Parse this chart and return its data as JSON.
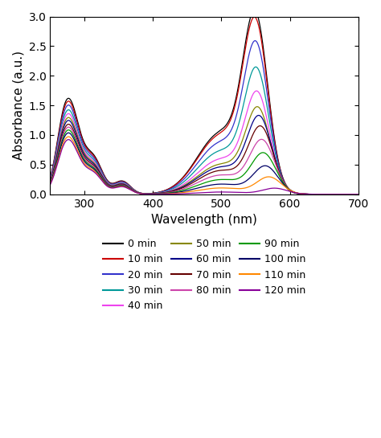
{
  "xlabel": "Wavelength (nm)",
  "ylabel": "Absorbance (a.u.)",
  "xlim": [
    250,
    700
  ],
  "ylim": [
    0.0,
    3.0
  ],
  "xticks": [
    300,
    400,
    500,
    600,
    700
  ],
  "yticks": [
    0.0,
    0.5,
    1.0,
    1.5,
    2.0,
    2.5,
    3.0
  ],
  "series": [
    {
      "label": "0 min",
      "color": "#000000",
      "peak2": 2.72,
      "peak_wl": 550,
      "uv_factor": 1.0
    },
    {
      "label": "10 min",
      "color": "#cc0000",
      "peak2": 2.62,
      "peak_wl": 550,
      "uv_factor": 0.97
    },
    {
      "label": "20 min",
      "color": "#3333cc",
      "peak2": 2.28,
      "peak_wl": 551,
      "uv_factor": 0.93
    },
    {
      "label": "30 min",
      "color": "#009999",
      "peak2": 1.9,
      "peak_wl": 552,
      "uv_factor": 0.88
    },
    {
      "label": "40 min",
      "color": "#ee44ee",
      "peak2": 1.55,
      "peak_wl": 553,
      "uv_factor": 0.84
    },
    {
      "label": "50 min",
      "color": "#888800",
      "peak2": 1.32,
      "peak_wl": 554,
      "uv_factor": 0.8
    },
    {
      "label": "60 min",
      "color": "#000088",
      "peak2": 1.2,
      "peak_wl": 556,
      "uv_factor": 0.77
    },
    {
      "label": "70 min",
      "color": "#660000",
      "peak2": 1.05,
      "peak_wl": 558,
      "uv_factor": 0.73
    },
    {
      "label": "80 min",
      "color": "#cc44aa",
      "peak2": 0.85,
      "peak_wl": 560,
      "uv_factor": 0.7
    },
    {
      "label": "90 min",
      "color": "#009900",
      "peak2": 0.65,
      "peak_wl": 562,
      "uv_factor": 0.67
    },
    {
      "label": "100 min",
      "color": "#000066",
      "peak2": 0.45,
      "peak_wl": 565,
      "uv_factor": 0.64
    },
    {
      "label": "110 min",
      "color": "#ff8800",
      "peak2": 0.28,
      "peak_wl": 570,
      "uv_factor": 0.6
    },
    {
      "label": "120 min",
      "color": "#880099",
      "peak2": 0.1,
      "peak_wl": 578,
      "uv_factor": 0.57
    }
  ],
  "figsize": [
    4.74,
    5.45
  ],
  "dpi": 100
}
